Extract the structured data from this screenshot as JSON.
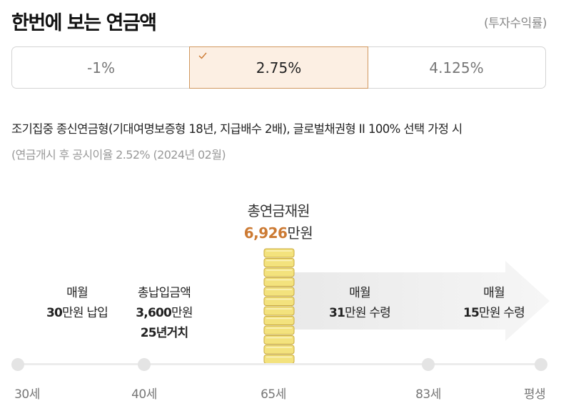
{
  "header": {
    "title": "한번에 보는 연금액",
    "subtitle": "(투자수익률)"
  },
  "rate_tabs": {
    "items": [
      "-1%",
      "2.75%",
      "4.125%"
    ],
    "selected_index": 1
  },
  "description": {
    "line1": "조기집중 종신연금형(기대여명보증형 18년, 지급배수 2배), 글로벌채권형 II 100% 선택 가정 시",
    "line2": "(연금개시 후 공시이율 2.52% (2024년 02월)"
  },
  "total": {
    "label": "총연금재원",
    "amount": "6,926",
    "unit": "만원"
  },
  "stages": {
    "monthly_payment": {
      "label": "매월",
      "amount": "30",
      "suffix": "만원 납입"
    },
    "total_paid": {
      "label": "총납입금액",
      "amount": "3,600",
      "unit": "만원",
      "period": "25년거치"
    },
    "receive_1": {
      "label": "매월",
      "amount": "31",
      "suffix": "만원 수령"
    },
    "receive_2": {
      "label": "매월",
      "amount": "15",
      "suffix": "만원 수령"
    }
  },
  "timeline": {
    "ages": [
      "30세",
      "40세",
      "65세",
      "83세",
      "평생"
    ]
  },
  "colors": {
    "accent": "#cc7a33",
    "selected_bg": "#fcefe3",
    "selected_border": "#d19960",
    "coin_fill": "#f3e27d",
    "coin_edge": "#c9a93e",
    "arrow_fill": "#f1f1f1"
  }
}
